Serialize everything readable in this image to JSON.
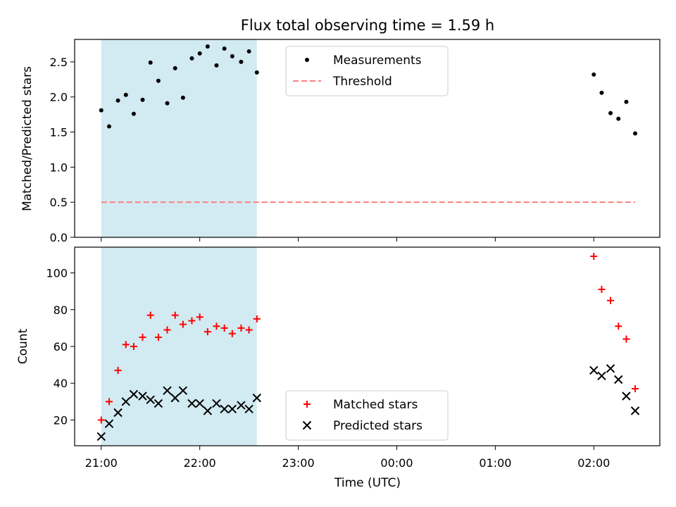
{
  "chart_data": {
    "type": "scatter",
    "title": "Flux total observing time = 1.59 h",
    "xlabel": "Time (UTC)",
    "x_ticks": [
      {
        "value": 0.0,
        "label": "21:00"
      },
      {
        "value": 1.0,
        "label": "22:00"
      },
      {
        "value": 2.0,
        "label": "23:00"
      },
      {
        "value": 3.0,
        "label": "00:00"
      },
      {
        "value": 4.0,
        "label": "01:00"
      },
      {
        "value": 5.0,
        "label": "02:00"
      }
    ],
    "xlim": [
      -0.27,
      5.67
    ],
    "shaded_span": {
      "x_start": 0.0,
      "x_end": 1.58,
      "color": "#add8e6"
    },
    "top_panel": {
      "ylabel": "Matched/Predicted stars",
      "ylim": [
        0.0,
        2.82
      ],
      "y_ticks": [
        {
          "value": 0.0,
          "label": "0.0"
        },
        {
          "value": 0.5,
          "label": "0.5"
        },
        {
          "value": 1.0,
          "label": "1.0"
        },
        {
          "value": 1.5,
          "label": "1.5"
        },
        {
          "value": 2.0,
          "label": "2.0"
        },
        {
          "value": 2.5,
          "label": "2.5"
        }
      ],
      "legend_position": "top-center",
      "series": [
        {
          "name": "Measurements",
          "marker": "dot",
          "color": "#000000",
          "points": [
            [
              0.0,
              1.81
            ],
            [
              0.08,
              1.58
            ],
            [
              0.17,
              1.95
            ],
            [
              0.25,
              2.03
            ],
            [
              0.33,
              1.76
            ],
            [
              0.42,
              1.96
            ],
            [
              0.5,
              2.49
            ],
            [
              0.58,
              2.23
            ],
            [
              0.67,
              1.91
            ],
            [
              0.75,
              2.41
            ],
            [
              0.83,
              1.99
            ],
            [
              0.92,
              2.55
            ],
            [
              1.0,
              2.62
            ],
            [
              1.08,
              2.72
            ],
            [
              1.17,
              2.45
            ],
            [
              1.25,
              2.69
            ],
            [
              1.33,
              2.58
            ],
            [
              1.42,
              2.5
            ],
            [
              1.5,
              2.65
            ],
            [
              1.58,
              2.35
            ],
            [
              5.0,
              2.32
            ],
            [
              5.08,
              2.06
            ],
            [
              5.17,
              1.77
            ],
            [
              5.25,
              1.69
            ],
            [
              5.33,
              1.93
            ],
            [
              5.42,
              1.48
            ]
          ]
        },
        {
          "name": "Threshold",
          "marker": "dashed-line",
          "color": "#ff7f7f",
          "points": [
            [
              0.0,
              0.5
            ],
            [
              5.42,
              0.5
            ]
          ]
        }
      ]
    },
    "bottom_panel": {
      "ylabel": "Count",
      "ylim": [
        6.0,
        114.0
      ],
      "y_ticks": [
        {
          "value": 20,
          "label": "20"
        },
        {
          "value": 40,
          "label": "40"
        },
        {
          "value": 60,
          "label": "60"
        },
        {
          "value": 80,
          "label": "80"
        },
        {
          "value": 100,
          "label": "100"
        }
      ],
      "legend_position": "bottom-center",
      "series": [
        {
          "name": "Matched stars",
          "marker": "plus",
          "color": "#ff0000",
          "points": [
            [
              0.0,
              20
            ],
            [
              0.08,
              30
            ],
            [
              0.17,
              47
            ],
            [
              0.25,
              61
            ],
            [
              0.33,
              60
            ],
            [
              0.42,
              65
            ],
            [
              0.5,
              77
            ],
            [
              0.58,
              65
            ],
            [
              0.67,
              69
            ],
            [
              0.75,
              77
            ],
            [
              0.83,
              72
            ],
            [
              0.92,
              74
            ],
            [
              1.0,
              76
            ],
            [
              1.08,
              68
            ],
            [
              1.17,
              71
            ],
            [
              1.25,
              70
            ],
            [
              1.33,
              67
            ],
            [
              1.42,
              70
            ],
            [
              1.5,
              69
            ],
            [
              1.58,
              75
            ],
            [
              5.0,
              109
            ],
            [
              5.08,
              91
            ],
            [
              5.17,
              85
            ],
            [
              5.25,
              71
            ],
            [
              5.33,
              64
            ],
            [
              5.42,
              37
            ]
          ]
        },
        {
          "name": "Predicted stars",
          "marker": "x",
          "color": "#000000",
          "points": [
            [
              0.0,
              11
            ],
            [
              0.08,
              18
            ],
            [
              0.17,
              24
            ],
            [
              0.25,
              30
            ],
            [
              0.33,
              34
            ],
            [
              0.42,
              33
            ],
            [
              0.5,
              31
            ],
            [
              0.58,
              29
            ],
            [
              0.67,
              36
            ],
            [
              0.75,
              32
            ],
            [
              0.83,
              36
            ],
            [
              0.92,
              29
            ],
            [
              1.0,
              29
            ],
            [
              1.08,
              25
            ],
            [
              1.17,
              29
            ],
            [
              1.25,
              26
            ],
            [
              1.33,
              26
            ],
            [
              1.42,
              28
            ],
            [
              1.5,
              26
            ],
            [
              1.58,
              32
            ],
            [
              5.0,
              47
            ],
            [
              5.08,
              44
            ],
            [
              5.17,
              48
            ],
            [
              5.25,
              42
            ],
            [
              5.33,
              33
            ],
            [
              5.42,
              25
            ]
          ]
        }
      ]
    }
  }
}
